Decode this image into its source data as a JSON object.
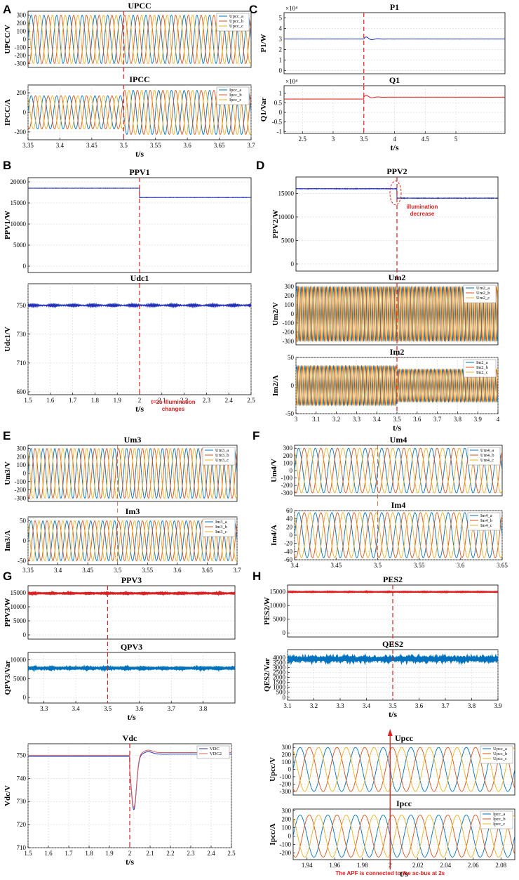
{
  "colors": {
    "a": "#0072BD",
    "b": "#D95319",
    "c": "#EDB120",
    "blue": "#1f2fb8",
    "red": "#e02020",
    "pink": "#e06060"
  },
  "panel_labels": [
    "A",
    "B",
    "C",
    "D",
    "E",
    "F",
    "G",
    "H"
  ],
  "chart_data": [
    {
      "id": "A-upcc",
      "panel": "A",
      "type": "line",
      "wave": "sine3",
      "title": "UPCC",
      "ylabel": "UPCC/V",
      "xlabel": "",
      "xlim": [
        3.35,
        3.7
      ],
      "ylim": [
        -350,
        350
      ],
      "xticks": [],
      "yticks": [
        -300,
        -200,
        -100,
        0,
        100,
        200,
        300
      ],
      "amp1": 300,
      "amp2": 300,
      "switch_x": 3.5,
      "cycles": 17.5,
      "legend": [
        "Upcc_a",
        "Upcc_b",
        "Upcc_c"
      ]
    },
    {
      "id": "A-ipcc",
      "panel": "A",
      "type": "line",
      "wave": "sine3",
      "title": "IPCC",
      "ylabel": "IPCC/A",
      "xlabel": "t/s",
      "xlim": [
        3.35,
        3.7
      ],
      "ylim": [
        -280,
        280
      ],
      "xticks": [
        3.35,
        3.4,
        3.45,
        3.5,
        3.55,
        3.6,
        3.65,
        3.7
      ],
      "yticks": [
        -200,
        0,
        200
      ],
      "amp1": 170,
      "amp2": 225,
      "switch_x": 3.5,
      "cycles": 17.5,
      "legend": [
        "Ipcc_a",
        "Ipcc_b",
        "Ipcc_c"
      ]
    },
    {
      "id": "B-ppv1",
      "panel": "B",
      "type": "line",
      "wave": "step",
      "title": "PPV1",
      "ylabel": "PPV1/W",
      "xlabel": "",
      "xlim": [
        1.5,
        2.5
      ],
      "ylim": [
        -1500,
        21000
      ],
      "xticks": [],
      "yticks": [
        0,
        5000,
        10000,
        15000,
        20000
      ],
      "v1": 18500,
      "v2": 16300,
      "switch_x": 2.0,
      "noise": 60,
      "series_color": "blue"
    },
    {
      "id": "B-udc1",
      "panel": "B",
      "type": "line",
      "wave": "flat",
      "title": "Udc1",
      "ylabel": "Udc1/V",
      "xlabel": "t/s",
      "xlim": [
        1.5,
        2.5
      ],
      "ylim": [
        688,
        765
      ],
      "xticks": [
        1.5,
        1.6,
        1.7,
        1.8,
        1.9,
        2.0,
        2.1,
        2.2,
        2.3,
        2.4,
        2.5
      ],
      "yticks": [
        690,
        710,
        730,
        750
      ],
      "v1": 750,
      "ripple": 1.2,
      "noise": 0.4,
      "switch_x": 2.0,
      "series_color": "blue",
      "annotation": [
        "t=2s illumination",
        "changes"
      ]
    },
    {
      "id": "C-p1",
      "panel": "C",
      "type": "line",
      "wave": "step",
      "title": "P1",
      "ylabel": "P1/W",
      "xlabel": "",
      "exponent": "×10⁴",
      "xlim": [
        2.2,
        5.8
      ],
      "ylim": [
        -0.3,
        5.5
      ],
      "xticks": [],
      "yticks": [
        0,
        1,
        2,
        3,
        4,
        5
      ],
      "v1": 3,
      "v2": 3,
      "switch_x": 3.5,
      "noise": 0.01,
      "transient": 0.3,
      "series_color": "blue"
    },
    {
      "id": "C-q1",
      "panel": "C",
      "type": "line",
      "wave": "step",
      "title": "Q1",
      "ylabel": "Q1/Var",
      "xlabel": "t/s",
      "exponent": "×10⁴",
      "xlim": [
        2.2,
        5.8
      ],
      "ylim": [
        -1.1,
        1.4
      ],
      "xticks": [
        2.5,
        3,
        3.5,
        4,
        4.5,
        5
      ],
      "yticks": [
        -1,
        -0.5,
        0,
        0.5,
        1
      ],
      "v1": 0.7,
      "v2": 0.8,
      "switch_x": 3.5,
      "noise": 0.005,
      "transient": 0.15,
      "series_color": "red"
    },
    {
      "id": "D-ppv2",
      "panel": "D",
      "type": "line",
      "wave": "step",
      "title": "PPV2",
      "ylabel": "PPV2/W",
      "xlabel": "",
      "xlim": [
        3.0,
        4.0
      ],
      "ylim": [
        -1500,
        18500
      ],
      "xticks": [],
      "yticks": [
        0,
        5000,
        10000,
        15000
      ],
      "v1": 16000,
      "v2": 14000,
      "switch_x": 3.5,
      "noise": 80,
      "series_color": "blue",
      "annotation": [
        "illumination",
        "decrease"
      ]
    },
    {
      "id": "D-um2",
      "panel": "D",
      "type": "line",
      "wave": "sine3",
      "title": "Um2",
      "ylabel": "Um2/V",
      "xlabel": "",
      "xlim": [
        3.0,
        4.0
      ],
      "ylim": [
        -340,
        340
      ],
      "xticks": [],
      "yticks": [
        -300,
        -200,
        -100,
        0,
        100,
        200,
        300
      ],
      "amp1": 300,
      "amp2": 300,
      "switch_x": 3.5,
      "cycles": 50,
      "legend": [
        "Um2_a",
        "Um2_b",
        "Um2_c"
      ]
    },
    {
      "id": "D-im2",
      "panel": "D",
      "type": "line",
      "wave": "sine3",
      "title": "Im2",
      "ylabel": "Im2/A",
      "xlabel": "t/s",
      "xlim": [
        3.0,
        4.0
      ],
      "ylim": [
        -50,
        50
      ],
      "xticks": [
        3.0,
        3.1,
        3.2,
        3.3,
        3.4,
        3.5,
        3.6,
        3.7,
        3.8,
        3.9,
        4.0
      ],
      "yticks": [
        -50,
        0,
        50
      ],
      "amp1": 35,
      "amp2": 29,
      "switch_x": 3.5,
      "cycles": 50,
      "legend": [
        "Im2_a",
        "Im2_b",
        "Im2_c"
      ]
    },
    {
      "id": "E-um3",
      "panel": "E",
      "type": "line",
      "wave": "sine3",
      "title": "Um3",
      "ylabel": "Um3/V",
      "xlabel": "",
      "xlim": [
        3.35,
        3.7
      ],
      "ylim": [
        -340,
        340
      ],
      "xticks": [],
      "yticks": [
        -300,
        -200,
        -100,
        0,
        100,
        200,
        300
      ],
      "amp1": 300,
      "amp2": 300,
      "switch_x": 3.5,
      "cycles": 17.5,
      "legend": [
        "Um3_a",
        "Um3_b",
        "Um3_c"
      ]
    },
    {
      "id": "E-im3",
      "panel": "E",
      "type": "line",
      "wave": "sine3",
      "title": "Im3",
      "ylabel": "Im3/A",
      "xlabel": "",
      "xlim": [
        3.35,
        3.7
      ],
      "ylim": [
        -60,
        60
      ],
      "xticks": [
        3.35,
        3.4,
        3.45,
        3.5,
        3.55,
        3.6,
        3.65,
        3.7
      ],
      "yticks": [
        -50,
        0,
        50
      ],
      "amp1": 50,
      "amp2": 50,
      "switch_x": 3.5,
      "cycles": 17.5,
      "legend": [
        "Im3_a",
        "Im3_b",
        "Im3_c"
      ]
    },
    {
      "id": "F-um4",
      "panel": "F",
      "type": "line",
      "wave": "sine3",
      "title": "Um4",
      "ylabel": "Um4/V",
      "xlabel": "",
      "xlim": [
        3.4,
        3.65
      ],
      "ylim": [
        -340,
        340
      ],
      "xticks": [],
      "yticks": [
        -300,
        -200,
        -100,
        0,
        100,
        200,
        300
      ],
      "amp1": 300,
      "amp2": 300,
      "switch_x": 3.5,
      "cycles": 12.5,
      "legend": [
        "Um4_a",
        "Um4_b",
        "Um4_c"
      ]
    },
    {
      "id": "F-im4",
      "panel": "F",
      "type": "line",
      "wave": "sine3",
      "title": "Im4",
      "ylabel": "Im4/A",
      "xlabel": "",
      "xlim": [
        3.4,
        3.65
      ],
      "ylim": [
        -60,
        60
      ],
      "xticks": [
        3.4,
        3.45,
        3.5,
        3.55,
        3.6,
        3.65
      ],
      "yticks": [
        -60,
        -40,
        -20,
        0,
        20,
        40,
        60
      ],
      "amp1": 55,
      "amp2": 55,
      "switch_x": 3.5,
      "cycles": 12.5,
      "legend": [
        "Im4_a",
        "Im4_b",
        "Im4_c"
      ]
    },
    {
      "id": "G-ppv3",
      "panel": "G",
      "type": "line",
      "wave": "flat",
      "title": "PPV3",
      "ylabel": "PPV3/W",
      "xlabel": "",
      "xlim": [
        3.25,
        3.9
      ],
      "ylim": [
        -1500,
        17500
      ],
      "xticks": [],
      "yticks": [
        0,
        5000,
        10000,
        15000
      ],
      "v1": 14800,
      "ripple": 180,
      "noise": 80,
      "switch_x": 3.5,
      "series_color": "red",
      "thick": 2.6
    },
    {
      "id": "G-qpv3",
      "panel": "G",
      "type": "line",
      "wave": "flat",
      "title": "QPV3",
      "ylabel": "QPV3/Var",
      "xlabel": "t/s",
      "xlim": [
        3.25,
        3.9
      ],
      "ylim": [
        -1500,
        12000
      ],
      "xticks": [
        3.3,
        3.4,
        3.5,
        3.6,
        3.7,
        3.8
      ],
      "yticks": [
        0,
        5000,
        10000
      ],
      "v1": 7800,
      "ripple": 150,
      "noise": 80,
      "switch_x": 3.5,
      "series_color": "a",
      "thick": 3.2
    },
    {
      "id": "H-pes2",
      "panel": "H",
      "type": "line",
      "wave": "flat",
      "title": "PES2",
      "ylabel": "PES2/W",
      "xlabel": "",
      "xlim": [
        3.1,
        3.9
      ],
      "ylim": [
        -1500,
        17500
      ],
      "xticks": [],
      "yticks": [
        0,
        5000,
        10000,
        15000
      ],
      "v1": 15000,
      "ripple": 120,
      "noise": 60,
      "switch_x": 3.5,
      "series_color": "red",
      "thick": 2.2
    },
    {
      "id": "H-qes2",
      "panel": "H",
      "type": "line",
      "wave": "flat",
      "title": "QES2",
      "ylabel": "QES2/Var",
      "xlabel": "t/s",
      "xlim": [
        3.1,
        3.9
      ],
      "ylim": [
        -300,
        4800
      ],
      "xticks": [
        3.1,
        3.2,
        3.3,
        3.4,
        3.5,
        3.6,
        3.7,
        3.8,
        3.9
      ],
      "yticks": [
        0,
        500,
        1000,
        1500,
        2000,
        2500,
        3000,
        3500,
        4000
      ],
      "v1": 3850,
      "ripple": 80,
      "noise": 60,
      "switch_x": 3.5,
      "series_color": "a",
      "thick": 4
    },
    {
      "id": "I-vdc",
      "panel": "",
      "type": "line",
      "wave": "dip",
      "title": "Vdc",
      "ylabel": "Vdc/V",
      "xlabel": "t/s",
      "xlim": [
        1.5,
        2.5
      ],
      "ylim": [
        710,
        755
      ],
      "xticks": [
        1.5,
        1.6,
        1.7,
        1.8,
        1.9,
        2.0,
        2.1,
        2.2,
        2.3,
        2.4,
        2.5
      ],
      "yticks": [
        710,
        720,
        730,
        740,
        750
      ],
      "series": [
        {
          "name": "Vdc",
          "color": "blue",
          "pre": 749.5,
          "min": 726.5,
          "post": 750.5
        },
        {
          "name": "Vdc2",
          "color": "pink",
          "pre": 750,
          "min": 727.5,
          "post": 751.2
        }
      ],
      "dip_x": 2.02,
      "switch_x": 2.0,
      "legend": [
        "VDC",
        "VDC2"
      ]
    },
    {
      "id": "J-upcc",
      "panel": "",
      "type": "line",
      "wave": "sine3",
      "title": "Upcc",
      "ylabel": "Upcc/V",
      "xlabel": "",
      "xlim": [
        1.93,
        2.09
      ],
      "ylim": [
        -350,
        350
      ],
      "xticks": [],
      "yticks": [
        -300,
        -200,
        -100,
        0,
        100,
        200,
        300
      ],
      "amp1": 300,
      "amp2": 300,
      "switch_x": 2.0,
      "cycles": 8,
      "legend": [
        "Upcc_a",
        "Upcc_b",
        "Upcc_c"
      ]
    },
    {
      "id": "J-ipcc",
      "panel": "",
      "type": "line",
      "wave": "sine3",
      "title": "Ipcc",
      "ylabel": "Ipcc/A",
      "xlabel": "t/s",
      "xlim": [
        1.93,
        2.09
      ],
      "ylim": [
        -280,
        320
      ],
      "xticks": [
        1.94,
        1.96,
        1.98,
        2.0,
        2.02,
        2.04,
        2.06,
        2.08
      ],
      "yticks": [
        -200,
        -100,
        0,
        100,
        200,
        300
      ],
      "amp1": 250,
      "amp2": 250,
      "switch_x": 2.0,
      "cycles": 8,
      "legend": [
        "Ipcc_a",
        "Ipcc_b",
        "Ipcc_c"
      ],
      "annotation": [
        "The APF is connected to the ac-bus at 2s"
      ]
    }
  ]
}
